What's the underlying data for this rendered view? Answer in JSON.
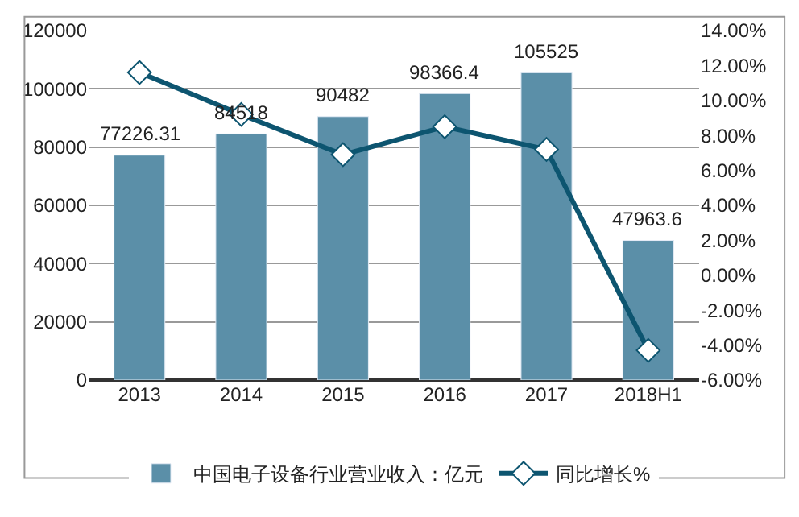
{
  "chart_data": {
    "type": "bar",
    "categories": [
      "2013",
      "2014",
      "2015",
      "2016",
      "2017",
      "2018H1"
    ],
    "series": [
      {
        "name": "中国电子设备行业营业收入：亿元",
        "color": "#5b8fa8",
        "values": [
          77226.31,
          84518,
          90482,
          98366.4,
          105525,
          47963.6
        ],
        "data_labels": true
      },
      {
        "name": "同比增长%",
        "type": "line",
        "axis": "y2",
        "color": "#0d5570",
        "marker": "diamond",
        "values": [
          11.6,
          9.2,
          6.9,
          8.5,
          7.2,
          -4.3
        ]
      }
    ],
    "ylim": [
      0,
      120000
    ],
    "yticks": [
      0,
      20000,
      40000,
      60000,
      80000,
      100000,
      120000
    ],
    "y2lim": [
      -6,
      14
    ],
    "y2ticks": [
      {
        "value": -6,
        "label": "-6.00%"
      },
      {
        "value": -4,
        "label": "-4.00%"
      },
      {
        "value": -2,
        "label": "-2.00%"
      },
      {
        "value": 0,
        "label": "0.00%"
      },
      {
        "value": 2,
        "label": "2.00%"
      },
      {
        "value": 4,
        "label": "4.00%"
      },
      {
        "value": 6,
        "label": "6.00%"
      },
      {
        "value": 8,
        "label": "8.00%"
      },
      {
        "value": 10,
        "label": "10.00%"
      },
      {
        "value": 12,
        "label": "12.00%"
      },
      {
        "value": 14,
        "label": "14.00%"
      }
    ],
    "grid": "y",
    "legend": "bottom"
  }
}
